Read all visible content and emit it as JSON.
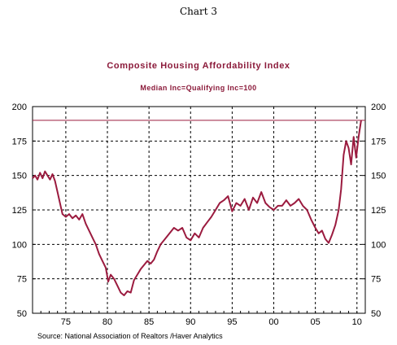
{
  "figure_label": "Chart 3",
  "source": "Source:  National Association of Realtors /Haver Analytics",
  "colors": {
    "series": "#9b1b3f",
    "grid": "#000000"
  },
  "chart_data": {
    "type": "line",
    "title": "Composite Housing Affordability Index",
    "subtitle": "Median Inc=Qualifying Inc=100",
    "xlabel": "",
    "ylabel": "",
    "xlim": [
      1971,
      2011
    ],
    "ylim": [
      50,
      200
    ],
    "x_ticks": [
      1975,
      1980,
      1985,
      1990,
      1995,
      2000,
      2005,
      2010
    ],
    "x_tick_labels": [
      "75",
      "80",
      "85",
      "90",
      "95",
      "00",
      "05",
      "10"
    ],
    "y_ticks": [
      50,
      75,
      100,
      125,
      150,
      175,
      200
    ],
    "y_tick_labels": [
      "50",
      "75",
      "100",
      "125",
      "150",
      "175",
      "200"
    ],
    "right_axis_labels": true,
    "grid": "dashed",
    "reference_line": {
      "y": 190
    },
    "series": [
      {
        "x": [
          1971.0,
          1971.3,
          1971.6,
          1971.9,
          1972.2,
          1972.5,
          1972.8,
          1973.1,
          1973.4,
          1973.7,
          1974.0,
          1974.3,
          1974.6,
          1975.0,
          1975.4,
          1975.8,
          1976.2,
          1976.6,
          1977.0,
          1977.4,
          1977.8,
          1978.2,
          1978.6,
          1979.0,
          1979.4,
          1979.8,
          1980.1,
          1980.4,
          1980.8,
          1981.2,
          1981.6,
          1982.0,
          1982.4,
          1982.8,
          1983.2,
          1983.6,
          1984.0,
          1984.4,
          1984.8,
          1985.2,
          1985.6,
          1986.0,
          1986.4,
          1986.8,
          1987.2,
          1987.6,
          1988.0,
          1988.5,
          1989.0,
          1989.5,
          1990.0,
          1990.5,
          1991.0,
          1991.5,
          1992.0,
          1992.5,
          1993.0,
          1993.5,
          1994.0,
          1994.5,
          1995.0,
          1995.5,
          1996.0,
          1996.5,
          1997.0,
          1997.5,
          1998.0,
          1998.5,
          1999.0,
          1999.5,
          2000.0,
          2000.5,
          2001.0,
          2001.5,
          2002.0,
          2002.5,
          2003.0,
          2003.5,
          2004.0,
          2004.5,
          2005.0,
          2005.4,
          2005.8,
          2006.2,
          2006.6,
          2007.0,
          2007.4,
          2007.8,
          2008.1,
          2008.4,
          2008.7,
          2009.0,
          2009.3,
          2009.6,
          2009.9,
          2010.2,
          2010.5
        ],
        "y": [
          148,
          150,
          147,
          152,
          148,
          153,
          150,
          147,
          151,
          146,
          138,
          130,
          122,
          120,
          122,
          119,
          121,
          118,
          122,
          115,
          110,
          105,
          100,
          93,
          88,
          83,
          73,
          78,
          75,
          70,
          65,
          63,
          66,
          65,
          74,
          78,
          82,
          85,
          88,
          86,
          89,
          95,
          100,
          103,
          106,
          109,
          112,
          110,
          112,
          105,
          103,
          108,
          105,
          112,
          116,
          120,
          125,
          130,
          132,
          135,
          124,
          130,
          128,
          133,
          125,
          134,
          130,
          138,
          130,
          127,
          125,
          128,
          128,
          132,
          128,
          130,
          133,
          128,
          125,
          118,
          112,
          108,
          110,
          104,
          101,
          107,
          114,
          125,
          140,
          165,
          175,
          170,
          158,
          178,
          163,
          178,
          190
        ]
      }
    ]
  }
}
